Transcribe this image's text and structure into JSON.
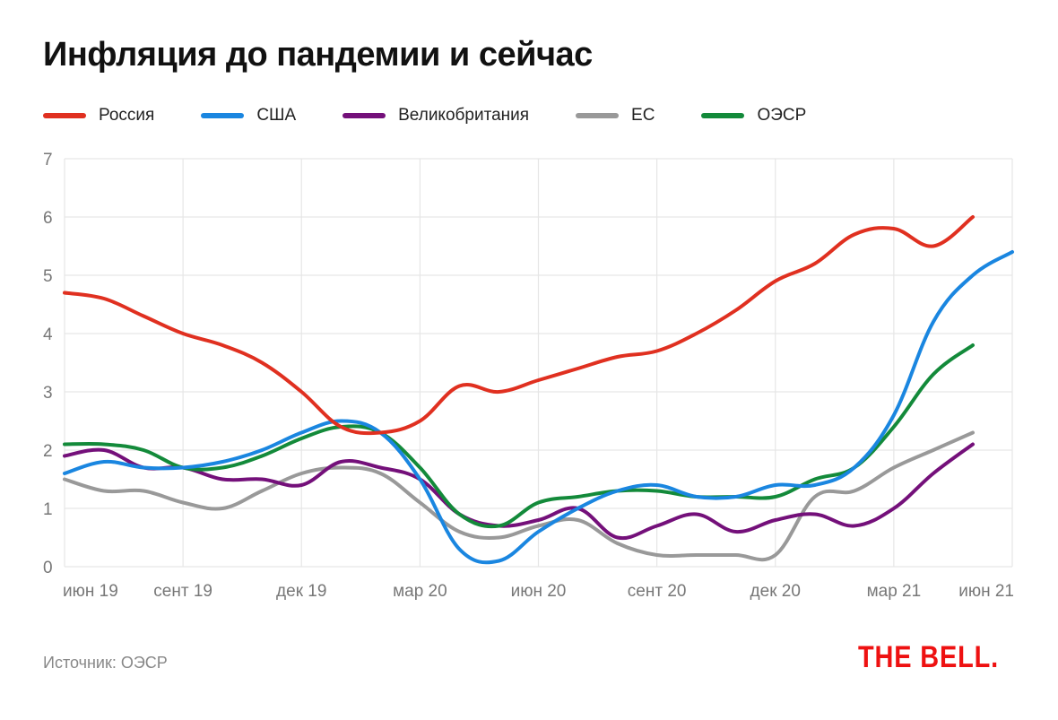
{
  "chart_data": {
    "type": "line",
    "title": "Инфляция до пандемии и сейчас",
    "xlabel": "",
    "ylabel": "",
    "ylim": [
      0,
      7
    ],
    "yticks": [
      "0",
      "1",
      "2",
      "3",
      "4",
      "5",
      "6",
      "7"
    ],
    "xtick_labels": [
      "июн 19",
      "сент 19",
      "дек 19",
      "мар 20",
      "июн 20",
      "сент 20",
      "дек 20",
      "мар 21",
      "июн 21"
    ],
    "x_months": [
      "июн 19",
      "июл 19",
      "авг 19",
      "сент 19",
      "окт 19",
      "нояб 19",
      "дек 19",
      "янв 20",
      "февр 20",
      "мар 20",
      "апр 20",
      "май 20",
      "июн 20",
      "июл 20",
      "авг 20",
      "сент 20",
      "окт 20",
      "нояб 20",
      "дек 20",
      "янв 21",
      "февр 21",
      "мар 21",
      "апр 21",
      "май 21",
      "июн 21"
    ],
    "grid": true,
    "legend_position": "top-left",
    "series": [
      {
        "name": "Россия",
        "color": "#e03020",
        "values": [
          4.7,
          4.6,
          4.3,
          4.0,
          3.8,
          3.5,
          3.0,
          2.4,
          2.3,
          2.5,
          3.1,
          3.0,
          3.2,
          3.4,
          3.6,
          3.7,
          4.0,
          4.4,
          4.9,
          5.2,
          5.7,
          5.8,
          5.5,
          6.0
        ]
      },
      {
        "name": "США",
        "color": "#1a86e0",
        "values": [
          1.6,
          1.8,
          1.7,
          1.7,
          1.8,
          2.0,
          2.3,
          2.5,
          2.3,
          1.5,
          0.3,
          0.1,
          0.6,
          1.0,
          1.3,
          1.4,
          1.2,
          1.2,
          1.4,
          1.4,
          1.7,
          2.6,
          4.2,
          5.0,
          5.4
        ]
      },
      {
        "name": "Великобритания",
        "color": "#74107a",
        "values": [
          1.9,
          2.0,
          1.7,
          1.7,
          1.5,
          1.5,
          1.4,
          1.8,
          1.7,
          1.5,
          0.9,
          0.7,
          0.8,
          1.0,
          0.5,
          0.7,
          0.9,
          0.6,
          0.8,
          0.9,
          0.7,
          1.0,
          1.6,
          2.1
        ]
      },
      {
        "name": "ЕС",
        "color": "#999999",
        "values": [
          1.5,
          1.3,
          1.3,
          1.1,
          1.0,
          1.3,
          1.6,
          1.7,
          1.6,
          1.1,
          0.6,
          0.5,
          0.7,
          0.8,
          0.4,
          0.2,
          0.2,
          0.2,
          0.2,
          1.2,
          1.3,
          1.7,
          2.0,
          2.3
        ]
      },
      {
        "name": "ОЭСР",
        "color": "#138a3a",
        "values": [
          2.1,
          2.1,
          2.0,
          1.7,
          1.7,
          1.9,
          2.2,
          2.4,
          2.3,
          1.7,
          0.9,
          0.7,
          1.1,
          1.2,
          1.3,
          1.3,
          1.2,
          1.2,
          1.2,
          1.5,
          1.7,
          2.4,
          3.3,
          3.8
        ]
      }
    ]
  },
  "footer": {
    "source": "Источник: ОЭСР",
    "logo": "THE BELL."
  }
}
